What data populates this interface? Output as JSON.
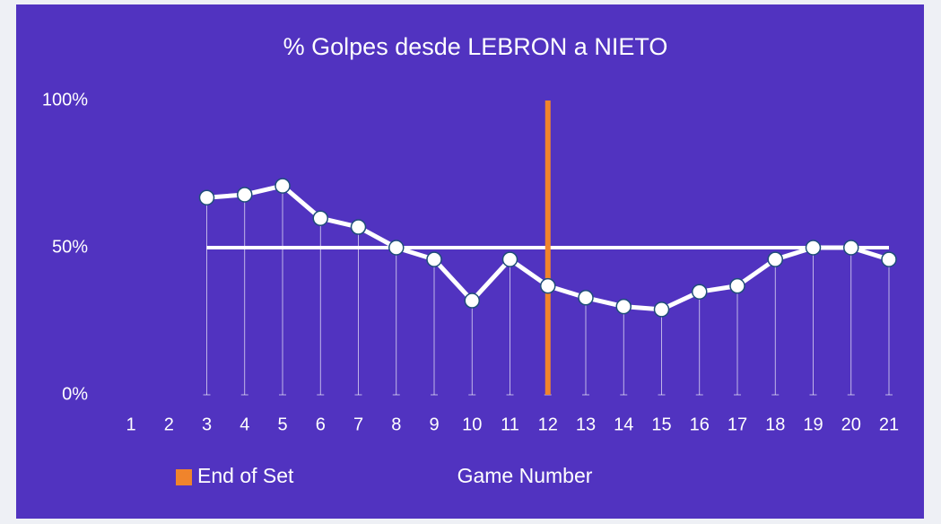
{
  "chart_data": {
    "type": "line",
    "title": "% Golpes desde LEBRON a NIETO",
    "x_label": "Game Number",
    "categories": [
      1,
      2,
      3,
      4,
      5,
      6,
      7,
      8,
      9,
      10,
      11,
      12,
      13,
      14,
      15,
      16,
      17,
      18,
      19,
      20,
      21
    ],
    "values": [
      null,
      null,
      67,
      68,
      71,
      60,
      57,
      50,
      46,
      32,
      46,
      37,
      33,
      30,
      29,
      35,
      37,
      46,
      50,
      50,
      46
    ],
    "color": "#ffffff",
    "ylim": [
      0,
      100
    ],
    "yticks": [
      {
        "value": 0,
        "label": "0%"
      },
      {
        "value": 50,
        "label": "50%"
      },
      {
        "value": 100,
        "label": "100%"
      }
    ],
    "reference_line": {
      "value": 50,
      "color": "#ffffff"
    },
    "end_of_set": {
      "label": "End of Set",
      "category": 12,
      "value": 100,
      "color": "#f0842c"
    },
    "background": "#5133c0"
  }
}
